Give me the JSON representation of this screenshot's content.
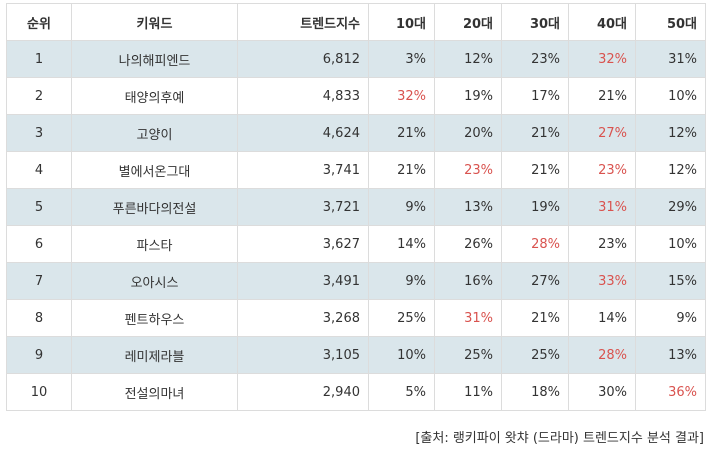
{
  "headers": {
    "rank": "순위",
    "keyword": "키워드",
    "index": "트렌드지수",
    "age10": "10대",
    "age20": "20대",
    "age30": "30대",
    "age40": "40대",
    "age50": "50대"
  },
  "rows": [
    {
      "rank": "1",
      "keyword": "나의해피엔드",
      "index": "6,812",
      "age10": "3%",
      "age20": "12%",
      "age30": "23%",
      "age40": "32%",
      "age50": "31%",
      "highlight": "age40"
    },
    {
      "rank": "2",
      "keyword": "태양의후예",
      "index": "4,833",
      "age10": "32%",
      "age20": "19%",
      "age30": "17%",
      "age40": "21%",
      "age50": "10%",
      "highlight": "age10"
    },
    {
      "rank": "3",
      "keyword": "고양이",
      "index": "4,624",
      "age10": "21%",
      "age20": "20%",
      "age30": "21%",
      "age40": "27%",
      "age50": "12%",
      "highlight": "age40"
    },
    {
      "rank": "4",
      "keyword": "별에서온그대",
      "index": "3,741",
      "age10": "21%",
      "age20": "23%",
      "age30": "21%",
      "age40": "23%",
      "age50": "12%",
      "highlight": "age20,age40"
    },
    {
      "rank": "5",
      "keyword": "푸른바다의전설",
      "index": "3,721",
      "age10": "9%",
      "age20": "13%",
      "age30": "19%",
      "age40": "31%",
      "age50": "29%",
      "highlight": "age40"
    },
    {
      "rank": "6",
      "keyword": "파스타",
      "index": "3,627",
      "age10": "14%",
      "age20": "26%",
      "age30": "28%",
      "age40": "23%",
      "age50": "10%",
      "highlight": "age30"
    },
    {
      "rank": "7",
      "keyword": "오아시스",
      "index": "3,491",
      "age10": "9%",
      "age20": "16%",
      "age30": "27%",
      "age40": "33%",
      "age50": "15%",
      "highlight": "age40"
    },
    {
      "rank": "8",
      "keyword": "펜트하우스",
      "index": "3,268",
      "age10": "25%",
      "age20": "31%",
      "age30": "21%",
      "age40": "14%",
      "age50": "9%",
      "highlight": "age20"
    },
    {
      "rank": "9",
      "keyword": "레미제라블",
      "index": "3,105",
      "age10": "10%",
      "age20": "25%",
      "age30": "25%",
      "age40": "28%",
      "age50": "13%",
      "highlight": "age40"
    },
    {
      "rank": "10",
      "keyword": "전설의마녀",
      "index": "2,940",
      "age10": "5%",
      "age20": "11%",
      "age30": "18%",
      "age40": "30%",
      "age50": "36%",
      "highlight": "age50"
    }
  ],
  "colors": {
    "highlight": "#d9534f",
    "stripe": "#dae6eb",
    "border": "#dcdcdc"
  },
  "source": "[출처: 랭키파이 왓챠 (드라마) 트렌드지수 분석 결과]"
}
